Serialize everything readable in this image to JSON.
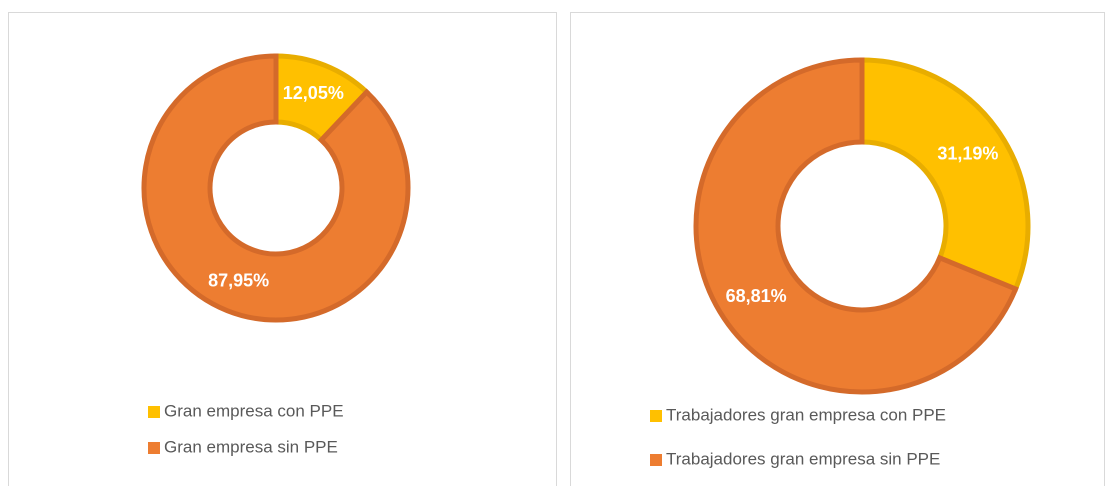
{
  "chart_data": [
    {
      "type": "donut",
      "categories": [
        "Gran empresa con PPE",
        "Gran empresa sin PPE"
      ],
      "values": [
        12.05,
        87.95
      ],
      "value_labels": [
        "12,05%",
        "87,95%"
      ],
      "colors": [
        "#FFC000",
        "#ED7D31"
      ],
      "legend": "bottom"
    },
    {
      "type": "donut",
      "categories": [
        "Trabajadores gran empresa con PPE",
        "Trabajadores gran empresa sin PPE"
      ],
      "values": [
        31.19,
        68.81
      ],
      "value_labels": [
        "31,19%",
        "68,81%"
      ],
      "colors": [
        "#FFC000",
        "#ED7D31"
      ],
      "legend": "bottom"
    }
  ]
}
